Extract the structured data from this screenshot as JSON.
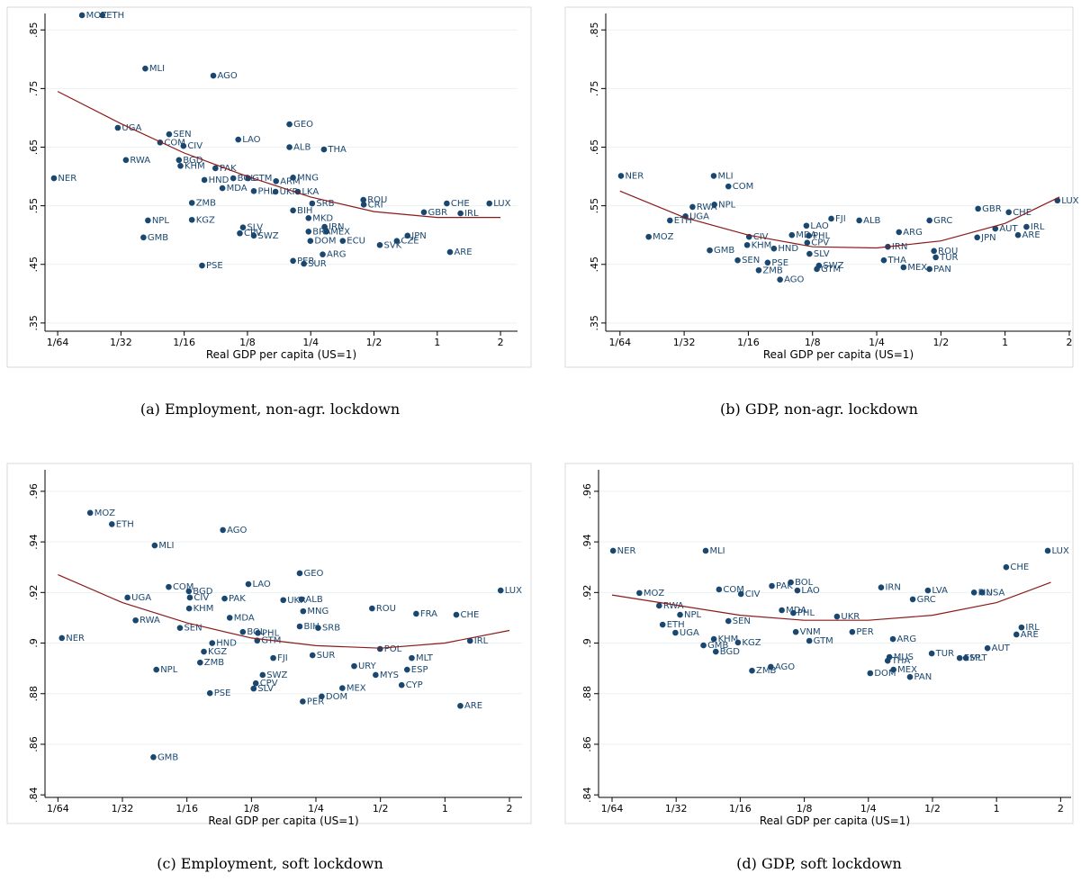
{
  "chart_data": [
    {
      "type": "scatter",
      "caption": "(a) Employment, non-agr. lockdown",
      "x_label": "Real GDP per capita (US=1)",
      "x_scale": "log",
      "grid": true,
      "color": "#1a476f",
      "xlim": [
        0.0136,
        2.41
      ],
      "ylim": [
        0.336,
        0.878
      ],
      "xticks": [
        {
          "value": 0.015625,
          "label": "1/64"
        },
        {
          "value": 0.03125,
          "label": "1/32"
        },
        {
          "value": 0.0625,
          "label": "1/16"
        },
        {
          "value": 0.125,
          "label": "1/8"
        },
        {
          "value": 0.25,
          "label": "1/4"
        },
        {
          "value": 0.5,
          "label": "1/2"
        },
        1,
        2
      ],
      "yticks": [
        {
          "value": 0.35,
          "label": ".35"
        },
        {
          "value": 0.45,
          "label": ".45"
        },
        {
          "value": 0.55,
          "label": ".55"
        },
        {
          "value": 0.65,
          "label": ".65"
        },
        {
          "value": 0.75,
          "label": ".75"
        },
        {
          "value": 0.85,
          "label": ".85"
        }
      ],
      "point_labels": [
        "MOZ",
        "ETH",
        "MLI",
        "AGO",
        "UGA",
        "SEN",
        "COM",
        "CIV",
        "GEO",
        "ALB",
        "LAO",
        "BGD",
        "KHM",
        "RWA",
        "PAK",
        "THA",
        "MNG",
        "ARM",
        "GTM",
        "BOL",
        "HND",
        "NER",
        "MDA",
        "PHL",
        "UKR",
        "LKA",
        "ZMB",
        "SRB",
        "ROU",
        "CRI",
        "CHE",
        "LUX",
        "IRL",
        "BIH",
        "MKD",
        "NPL",
        "KGZ",
        "IRN",
        "SLV",
        "CPV",
        "SWZ",
        "BRA",
        "MEX",
        "GMB",
        "DOM",
        "ECU",
        "JPN",
        "CZE",
        "SVK",
        "ARE",
        "ARG",
        "PER",
        "SUR",
        "PSE",
        "GBR"
      ],
      "x": [
        0.0204,
        0.0255,
        0.0408,
        0.086,
        0.0302,
        0.053,
        0.048,
        0.062,
        0.198,
        0.198,
        0.113,
        0.059,
        0.06,
        0.033,
        0.088,
        0.289,
        0.206,
        0.171,
        0.126,
        0.107,
        0.078,
        0.015,
        0.095,
        0.134,
        0.17,
        0.217,
        0.068,
        0.254,
        0.445,
        0.447,
        1.11,
        1.77,
        1.29,
        0.206,
        0.244,
        0.042,
        0.068,
        0.291,
        0.119,
        0.115,
        0.134,
        0.244,
        0.297,
        0.04,
        0.249,
        0.355,
        0.722,
        0.642,
        0.533,
        1.15,
        0.285,
        0.206,
        0.232,
        0.076,
        0.864
      ],
      "values": [
        0.875,
        0.875,
        0.784,
        0.772,
        0.683,
        0.672,
        0.658,
        0.652,
        0.689,
        0.65,
        0.663,
        0.628,
        0.618,
        0.628,
        0.614,
        0.646,
        0.598,
        0.592,
        0.597,
        0.597,
        0.594,
        0.597,
        0.58,
        0.575,
        0.574,
        0.574,
        0.555,
        0.554,
        0.56,
        0.552,
        0.554,
        0.554,
        0.537,
        0.542,
        0.529,
        0.525,
        0.526,
        0.514,
        0.513,
        0.503,
        0.499,
        0.506,
        0.506,
        0.496,
        0.49,
        0.49,
        0.499,
        0.49,
        0.483,
        0.471,
        0.467,
        0.456,
        0.451,
        0.448,
        0.539
      ],
      "fit": {
        "color": "#8b1a1a",
        "x": [
          0.015625,
          0.03125,
          0.0625,
          0.125,
          0.25,
          0.5,
          1,
          2
        ],
        "values": [
          0.745,
          0.69,
          0.64,
          0.6,
          0.565,
          0.54,
          0.53,
          0.53
        ]
      }
    },
    {
      "type": "scatter",
      "caption": "(b) GDP, non-agr. lockdown",
      "x_label": "Real GDP per capita (US=1)",
      "x_scale": "log",
      "grid": true,
      "color": "#1a476f",
      "xlim": [
        0.0134,
        2.04
      ],
      "ylim": [
        0.336,
        0.878
      ],
      "xticks": [
        {
          "value": 0.015625,
          "label": "1/64"
        },
        {
          "value": 0.03125,
          "label": "1/32"
        },
        {
          "value": 0.0625,
          "label": "1/16"
        },
        {
          "value": 0.125,
          "label": "1/8"
        },
        {
          "value": 0.25,
          "label": "1/4"
        },
        {
          "value": 0.5,
          "label": "1/2"
        },
        1,
        2
      ],
      "yticks": [
        {
          "value": 0.35,
          "label": ".35"
        },
        {
          "value": 0.45,
          "label": ".45"
        },
        {
          "value": 0.55,
          "label": ".55"
        },
        {
          "value": 0.65,
          "label": ".65"
        },
        {
          "value": 0.75,
          "label": ".75"
        },
        {
          "value": 0.85,
          "label": ".85"
        }
      ],
      "point_labels": [
        "NER",
        "MLI",
        "COM",
        "RWA",
        "NPL",
        "UGA",
        "ETH",
        "MOZ",
        "GMB",
        "CIV",
        "KHM",
        "HND",
        "MDA",
        "LAO",
        "FJI",
        "ALB",
        "PHL",
        "CPV",
        "SEN",
        "ZMB",
        "PSE",
        "AGO",
        "SLV",
        "SWZ",
        "GTM",
        "ARG",
        "IRN",
        "THA",
        "MEX",
        "PAN",
        "TUR",
        "ROU",
        "GRC",
        "GBR",
        "CHE",
        "LUX",
        "IRL",
        "ARE",
        "AUT",
        "JPN"
      ],
      "x": [
        0.0158,
        0.043,
        0.0504,
        0.0342,
        0.0433,
        0.0317,
        0.0268,
        0.0213,
        0.0412,
        0.063,
        0.0617,
        0.0824,
        0.1,
        0.117,
        0.153,
        0.207,
        0.12,
        0.118,
        0.0557,
        0.0699,
        0.077,
        0.088,
        0.121,
        0.134,
        0.131,
        0.318,
        0.282,
        0.27,
        0.334,
        0.442,
        0.473,
        0.464,
        0.442,
        0.747,
        1.04,
        1.76,
        1.26,
        1.15,
        0.9,
        0.74
      ],
      "values": [
        0.601,
        0.601,
        0.583,
        0.548,
        0.552,
        0.532,
        0.525,
        0.497,
        0.474,
        0.497,
        0.483,
        0.477,
        0.5,
        0.516,
        0.528,
        0.525,
        0.499,
        0.487,
        0.457,
        0.44,
        0.453,
        0.424,
        0.468,
        0.448,
        0.442,
        0.505,
        0.48,
        0.457,
        0.445,
        0.442,
        0.462,
        0.473,
        0.525,
        0.545,
        0.539,
        0.559,
        0.514,
        0.5,
        0.511,
        0.496
      ],
      "fit": {
        "color": "#8b1a1a",
        "x": [
          0.015625,
          0.03125,
          0.0625,
          0.125,
          0.25,
          0.5,
          1,
          1.8
        ],
        "values": [
          0.575,
          0.53,
          0.5,
          0.48,
          0.478,
          0.49,
          0.52,
          0.565
        ]
      }
    },
    {
      "type": "scatter",
      "caption": "(c) Employment, soft lockdown",
      "x_label": "Real GDP per capita (US=1)",
      "x_scale": "log",
      "grid": true,
      "color": "#1a476f",
      "xlim": [
        0.0136,
        2.29
      ],
      "ylim": [
        0.839,
        0.9685
      ],
      "xticks": [
        {
          "value": 0.015625,
          "label": "1/64"
        },
        {
          "value": 0.03125,
          "label": "1/32"
        },
        {
          "value": 0.0625,
          "label": "1/16"
        },
        {
          "value": 0.125,
          "label": "1/8"
        },
        {
          "value": 0.25,
          "label": "1/4"
        },
        {
          "value": 0.5,
          "label": "1/2"
        },
        1,
        2
      ],
      "yticks": [
        {
          "value": 0.84,
          "label": ".84"
        },
        {
          "value": 0.86,
          "label": ".86"
        },
        {
          "value": 0.88,
          "label": ".88"
        },
        {
          "value": 0.9,
          "label": ".9"
        },
        {
          "value": 0.92,
          "label": ".92"
        },
        {
          "value": 0.94,
          "label": ".94"
        },
        {
          "value": 0.96,
          "label": ".96"
        }
      ],
      "point_labels": [
        "MOZ",
        "ETH",
        "MLI",
        "AGO",
        "COM",
        "BGD",
        "UGA",
        "LAO",
        "GEO",
        "PAK",
        "CIV",
        "KHM",
        "UKR",
        "ALB",
        "MNG",
        "ROU",
        "NER",
        "RWA",
        "MDA",
        "SEN",
        "BOL",
        "PHL",
        "GTM",
        "HND",
        "KGZ",
        "ZMB",
        "BIH",
        "SRB",
        "POL",
        "FRA",
        "CHE",
        "LUX",
        "IRL",
        "FJI",
        "SUR",
        "NPL",
        "MLT",
        "URY",
        "MYS",
        "ESP",
        "CYP",
        "SWZ",
        "CPV",
        "SLV",
        "PSE",
        "MEX",
        "DOM",
        "PER",
        "ARE",
        "GMB"
      ],
      "x": [
        0.0221,
        0.0279,
        0.0442,
        0.092,
        0.0514,
        0.0638,
        0.033,
        0.121,
        0.21,
        0.0937,
        0.0645,
        0.064,
        0.176,
        0.214,
        0.218,
        0.457,
        0.0163,
        0.036,
        0.099,
        0.058,
        0.114,
        0.134,
        0.133,
        0.082,
        0.075,
        0.072,
        0.21,
        0.256,
        0.498,
        0.734,
        1.13,
        1.82,
        1.31,
        0.158,
        0.241,
        0.045,
        0.7,
        0.377,
        0.475,
        0.666,
        0.628,
        0.141,
        0.131,
        0.128,
        0.08,
        0.332,
        0.266,
        0.217,
        1.18,
        0.0436
      ],
      "values": [
        0.9515,
        0.947,
        0.9386,
        0.9447,
        0.9222,
        0.9205,
        0.918,
        0.9233,
        0.9276,
        0.9176,
        0.918,
        0.9137,
        0.917,
        0.9173,
        0.9126,
        0.9137,
        0.902,
        0.909,
        0.91,
        0.906,
        0.9044,
        0.904,
        0.901,
        0.9,
        0.8966,
        0.8923,
        0.9066,
        0.906,
        0.8977,
        0.9116,
        0.9112,
        0.9208,
        0.9009,
        0.8941,
        0.8952,
        0.8895,
        0.8941,
        0.8909,
        0.8874,
        0.8895,
        0.8834,
        0.8874,
        0.8841,
        0.882,
        0.8802,
        0.8822,
        0.8789,
        0.8769,
        0.8752,
        0.8549
      ],
      "fit": {
        "color": "#8b1a1a",
        "x": [
          0.015625,
          0.03125,
          0.0625,
          0.125,
          0.25,
          0.5,
          1,
          2
        ],
        "values": [
          0.927,
          0.916,
          0.908,
          0.902,
          0.899,
          0.898,
          0.9,
          0.905
        ]
      }
    },
    {
      "type": "scatter",
      "caption": "(d) GDP, soft lockdown",
      "x_label": "Real GDP per capita (US=1)",
      "x_scale": "log",
      "grid": true,
      "color": "#1a476f",
      "xlim": [
        0.0135,
        2.24
      ],
      "ylim": [
        0.839,
        0.9685
      ],
      "xticks": [
        {
          "value": 0.015625,
          "label": "1/64"
        },
        {
          "value": 0.03125,
          "label": "1/32"
        },
        {
          "value": 0.0625,
          "label": "1/16"
        },
        {
          "value": 0.125,
          "label": "1/8"
        },
        {
          "value": 0.25,
          "label": "1/4"
        },
        {
          "value": 0.5,
          "label": "1/2"
        },
        1,
        2
      ],
      "yticks": [
        {
          "value": 0.84,
          "label": ".84"
        },
        {
          "value": 0.86,
          "label": ".86"
        },
        {
          "value": 0.88,
          "label": ".88"
        },
        {
          "value": 0.9,
          "label": ".9"
        },
        {
          "value": 0.92,
          "label": ".92"
        },
        {
          "value": 0.94,
          "label": ".94"
        },
        {
          "value": 0.96,
          "label": ".96"
        }
      ],
      "point_labels": [
        "NER",
        "MLI",
        "LUX",
        "CHE",
        "MOZ",
        "RWA",
        "NPL",
        "COM",
        "CIV",
        "PAK",
        "BOL",
        "LAO",
        "IRN",
        "LVA",
        "FIN",
        "USA",
        "SEN",
        "ETH",
        "UGA",
        "GMB",
        "BGD",
        "KHM",
        "KGZ",
        "ZMB",
        "AGO",
        "MDA",
        "PHL",
        "UKR",
        "VNM",
        "GTM",
        "ARG",
        "PER",
        "THA",
        "MEX",
        "DOM",
        "PAN",
        "MUS",
        "TUR",
        "MLT",
        "ESP",
        "AUT",
        "IRL",
        "ARE",
        "GRC"
      ],
      "x": [
        0.0158,
        0.043,
        1.74,
        1.11,
        0.021,
        0.026,
        0.0326,
        0.0497,
        0.063,
        0.088,
        0.108,
        0.116,
        0.287,
        0.476,
        0.784,
        0.856,
        0.055,
        0.027,
        0.031,
        0.042,
        0.048,
        0.047,
        0.061,
        0.071,
        0.087,
        0.098,
        0.111,
        0.178,
        0.114,
        0.132,
        0.326,
        0.21,
        0.308,
        0.328,
        0.255,
        0.392,
        0.314,
        0.496,
        0.718,
        0.671,
        0.907,
        1.31,
        1.24,
        0.404
      ],
      "values": [
        0.9365,
        0.9365,
        0.9365,
        0.93,
        0.9198,
        0.9148,
        0.9112,
        0.9212,
        0.9194,
        0.9226,
        0.924,
        0.9208,
        0.922,
        0.9208,
        0.92,
        0.92,
        0.9087,
        0.9073,
        0.9041,
        0.8991,
        0.8966,
        0.9016,
        0.9002,
        0.8891,
        0.8906,
        0.913,
        0.9119,
        0.9105,
        0.9044,
        0.9009,
        0.9016,
        0.9044,
        0.893,
        0.8895,
        0.8881,
        0.8866,
        0.8945,
        0.8959,
        0.8941,
        0.8941,
        0.898,
        0.9062,
        0.9034,
        0.9173
      ],
      "fit": {
        "color": "#8b1a1a",
        "x": [
          0.015625,
          0.03125,
          0.0625,
          0.125,
          0.25,
          0.5,
          1,
          1.8
        ],
        "values": [
          0.919,
          0.915,
          0.911,
          0.909,
          0.909,
          0.911,
          0.916,
          0.924
        ]
      }
    }
  ]
}
